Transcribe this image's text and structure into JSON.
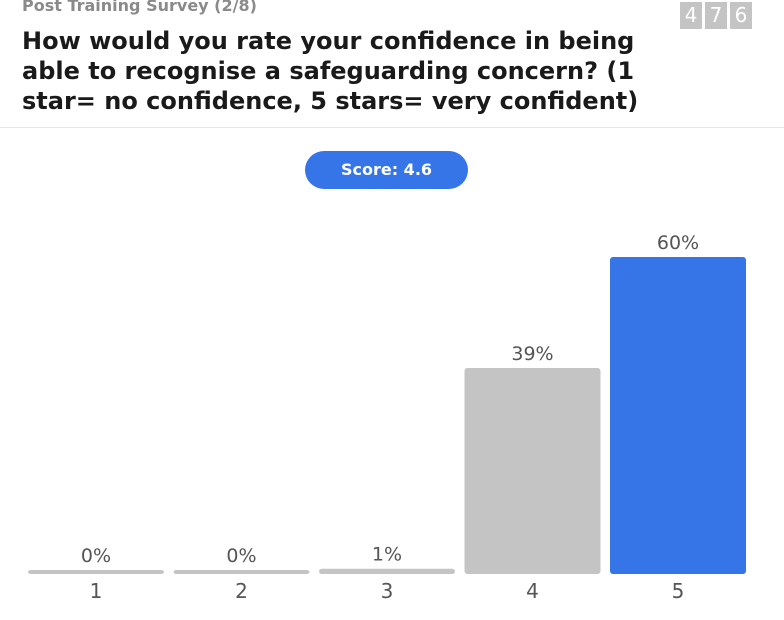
{
  "header": {
    "subtitle": "Post Training Survey (2/8)",
    "question": "How would you rate your confidence in being able to recognise a safeguarding concern? (1 star= no confidence, 5 stars= very confident)",
    "counter_digits": [
      "4",
      "7",
      "6"
    ]
  },
  "score": {
    "label": "Score: 4.6"
  },
  "colors": {
    "bar_default": "#c4c4c4",
    "bar_highlight": "#3575e8",
    "pill": "#3575e8"
  },
  "chart_data": {
    "type": "bar",
    "categories": [
      "1",
      "2",
      "3",
      "4",
      "5"
    ],
    "values": [
      0,
      0,
      1,
      39,
      60
    ],
    "value_labels": [
      "0%",
      "0%",
      "1%",
      "39%",
      "60%"
    ],
    "highlight_index": 4,
    "ylim": [
      0,
      60
    ]
  }
}
